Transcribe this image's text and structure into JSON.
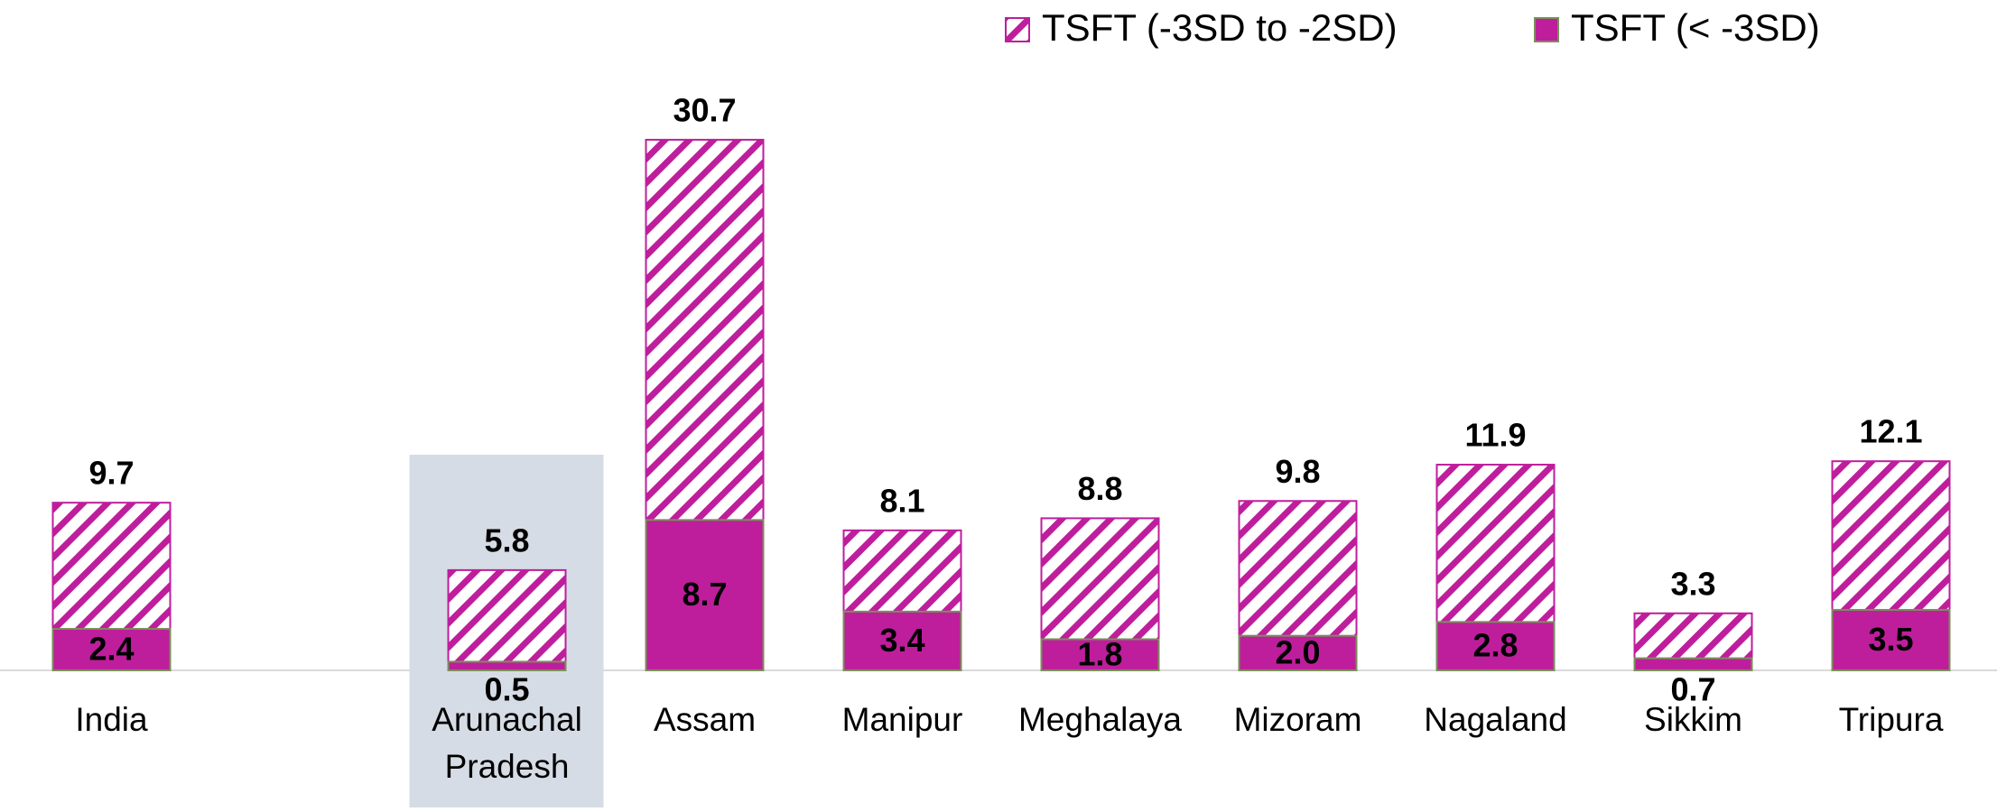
{
  "chart_data": {
    "type": "bar",
    "overlap": true,
    "categories": [
      "India",
      null,
      "Arunachal Pradesh",
      "Assam",
      "Manipur",
      "Meghalaya",
      "Mizoram",
      "Nagaland",
      "Sikkim",
      "Tripura"
    ],
    "highlight": "Arunachal Pradesh",
    "series": [
      {
        "name": "TSFT (-3SD to -2SD)",
        "color": "#be1e9c",
        "pattern": "hatch",
        "values": [
          9.7,
          null,
          5.8,
          30.7,
          8.1,
          8.8,
          9.8,
          11.9,
          3.3,
          12.1
        ],
        "value_labels": [
          "9.7",
          null,
          "5.8",
          "30.7",
          "8.1",
          "8.8",
          "9.8",
          "11.9",
          "3.3",
          "12.1"
        ]
      },
      {
        "name": "TSFT (< -3SD)",
        "color": "#be1e9c",
        "pattern": "solid",
        "values": [
          2.4,
          null,
          0.5,
          8.7,
          3.4,
          1.8,
          2.0,
          2.8,
          0.7,
          3.5
        ],
        "value_labels": [
          "2.4",
          null,
          "0.5",
          "8.7",
          "3.4",
          "1.8",
          "2.0",
          "2.8",
          "0.7",
          "3.5"
        ]
      }
    ],
    "ylim": [
      0,
      32
    ],
    "grid": false,
    "legend": "top"
  }
}
